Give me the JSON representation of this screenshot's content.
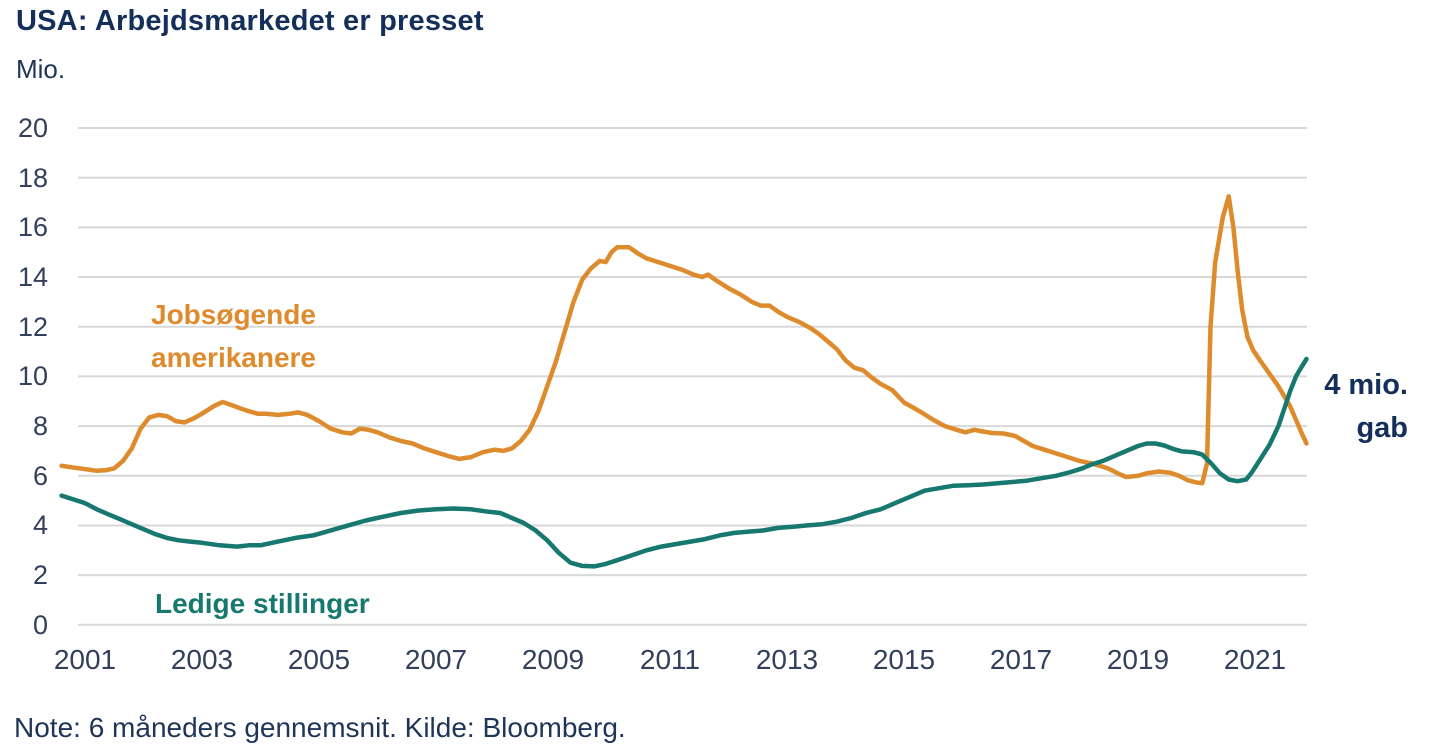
{
  "header": {
    "title": "USA: Arbejdsmarkedet er presset",
    "unit": "Mio."
  },
  "legend": {
    "jobseekers": {
      "line1": "Jobsøgende",
      "line2": "amerikanere"
    },
    "vacancies": {
      "label": "Ledige stillinger"
    }
  },
  "annotation": {
    "line1": "4 mio.",
    "line2": "gab"
  },
  "footer": {
    "note": "Note: 6 måneders gennemsnit. Kilde: Bloomberg."
  },
  "colors": {
    "jobseekers": "#dd8b2d",
    "vacancies": "#17786f",
    "grid": "#d8d8d8",
    "title": "#14305a",
    "tick": "#33405c"
  },
  "chart_data": {
    "type": "line",
    "title": "USA: Arbejdsmarkedet er presset",
    "ylabel": "Mio.",
    "ylim": [
      0,
      20
    ],
    "grid": "horizontal",
    "legend_position": "inline-labels",
    "y_ticks": [
      0,
      2,
      4,
      6,
      8,
      10,
      12,
      14,
      16,
      18,
      20
    ],
    "x_ticks": [
      2001,
      2003,
      2005,
      2007,
      2009,
      2011,
      2013,
      2015,
      2017,
      2019,
      2021
    ],
    "annotation_text": "4 mio. gab",
    "note": "Note: 6 måneders gennemsnit. Kilde: Bloomberg.",
    "series": [
      {
        "name": "Jobsøgende amerikanere",
        "color": "#dd8b2d",
        "points": [
          [
            2000.6,
            6.4
          ],
          [
            2000.75,
            6.35
          ],
          [
            2000.9,
            6.3
          ],
          [
            2001.05,
            6.25
          ],
          [
            2001.2,
            6.2
          ],
          [
            2001.35,
            6.22
          ],
          [
            2001.5,
            6.3
          ],
          [
            2001.65,
            6.6
          ],
          [
            2001.8,
            7.1
          ],
          [
            2001.95,
            7.9
          ],
          [
            2002.1,
            8.35
          ],
          [
            2002.25,
            8.45
          ],
          [
            2002.4,
            8.4
          ],
          [
            2002.55,
            8.2
          ],
          [
            2002.7,
            8.15
          ],
          [
            2002.85,
            8.3
          ],
          [
            2003.0,
            8.5
          ],
          [
            2003.2,
            8.8
          ],
          [
            2003.35,
            8.97
          ],
          [
            2003.5,
            8.85
          ],
          [
            2003.65,
            8.72
          ],
          [
            2003.8,
            8.6
          ],
          [
            2003.95,
            8.5
          ],
          [
            2004.1,
            8.5
          ],
          [
            2004.3,
            8.45
          ],
          [
            2004.5,
            8.5
          ],
          [
            2004.65,
            8.55
          ],
          [
            2004.8,
            8.45
          ],
          [
            2005.0,
            8.2
          ],
          [
            2005.2,
            7.9
          ],
          [
            2005.4,
            7.75
          ],
          [
            2005.55,
            7.7
          ],
          [
            2005.7,
            7.9
          ],
          [
            2005.85,
            7.85
          ],
          [
            2006.0,
            7.75
          ],
          [
            2006.2,
            7.55
          ],
          [
            2006.4,
            7.4
          ],
          [
            2006.6,
            7.3
          ],
          [
            2006.8,
            7.1
          ],
          [
            2007.0,
            6.95
          ],
          [
            2007.2,
            6.8
          ],
          [
            2007.4,
            6.68
          ],
          [
            2007.6,
            6.75
          ],
          [
            2007.8,
            6.95
          ],
          [
            2008.0,
            7.05
          ],
          [
            2008.15,
            7.0
          ],
          [
            2008.3,
            7.1
          ],
          [
            2008.45,
            7.4
          ],
          [
            2008.6,
            7.85
          ],
          [
            2008.75,
            8.6
          ],
          [
            2008.9,
            9.6
          ],
          [
            2009.05,
            10.6
          ],
          [
            2009.2,
            11.8
          ],
          [
            2009.35,
            13.0
          ],
          [
            2009.5,
            13.9
          ],
          [
            2009.65,
            14.35
          ],
          [
            2009.8,
            14.65
          ],
          [
            2009.9,
            14.6
          ],
          [
            2010.0,
            15.0
          ],
          [
            2010.1,
            15.2
          ],
          [
            2010.3,
            15.2
          ],
          [
            2010.45,
            14.95
          ],
          [
            2010.6,
            14.75
          ],
          [
            2010.8,
            14.6
          ],
          [
            2011.0,
            14.45
          ],
          [
            2011.2,
            14.3
          ],
          [
            2011.4,
            14.1
          ],
          [
            2011.55,
            14.0
          ],
          [
            2011.65,
            14.1
          ],
          [
            2011.8,
            13.85
          ],
          [
            2012.0,
            13.55
          ],
          [
            2012.2,
            13.3
          ],
          [
            2012.4,
            13.0
          ],
          [
            2012.55,
            12.85
          ],
          [
            2012.7,
            12.85
          ],
          [
            2012.85,
            12.6
          ],
          [
            2013.0,
            12.4
          ],
          [
            2013.2,
            12.2
          ],
          [
            2013.4,
            11.95
          ],
          [
            2013.55,
            11.7
          ],
          [
            2013.7,
            11.4
          ],
          [
            2013.85,
            11.1
          ],
          [
            2014.0,
            10.65
          ],
          [
            2014.15,
            10.35
          ],
          [
            2014.3,
            10.25
          ],
          [
            2014.45,
            9.95
          ],
          [
            2014.6,
            9.7
          ],
          [
            2014.8,
            9.45
          ],
          [
            2015.0,
            8.95
          ],
          [
            2015.15,
            8.75
          ],
          [
            2015.3,
            8.55
          ],
          [
            2015.5,
            8.25
          ],
          [
            2015.7,
            8.0
          ],
          [
            2015.9,
            7.85
          ],
          [
            2016.05,
            7.75
          ],
          [
            2016.2,
            7.85
          ],
          [
            2016.35,
            7.78
          ],
          [
            2016.5,
            7.72
          ],
          [
            2016.7,
            7.7
          ],
          [
            2016.9,
            7.6
          ],
          [
            2017.05,
            7.4
          ],
          [
            2017.2,
            7.2
          ],
          [
            2017.4,
            7.05
          ],
          [
            2017.6,
            6.9
          ],
          [
            2017.8,
            6.75
          ],
          [
            2018.0,
            6.6
          ],
          [
            2018.2,
            6.5
          ],
          [
            2018.35,
            6.4
          ],
          [
            2018.5,
            6.28
          ],
          [
            2018.65,
            6.1
          ],
          [
            2018.8,
            5.95
          ],
          [
            2019.0,
            6.0
          ],
          [
            2019.15,
            6.1
          ],
          [
            2019.35,
            6.17
          ],
          [
            2019.55,
            6.12
          ],
          [
            2019.7,
            6.0
          ],
          [
            2019.85,
            5.82
          ],
          [
            2020.0,
            5.73
          ],
          [
            2020.1,
            5.7
          ],
          [
            2020.18,
            6.5
          ],
          [
            2020.24,
            12.0
          ],
          [
            2020.32,
            14.6
          ],
          [
            2020.45,
            16.4
          ],
          [
            2020.55,
            17.25
          ],
          [
            2020.63,
            16.0
          ],
          [
            2020.7,
            14.3
          ],
          [
            2020.78,
            12.7
          ],
          [
            2020.87,
            11.6
          ],
          [
            2020.97,
            11.05
          ],
          [
            2021.1,
            10.6
          ],
          [
            2021.25,
            10.1
          ],
          [
            2021.4,
            9.6
          ],
          [
            2021.5,
            9.2
          ],
          [
            2021.6,
            8.8
          ],
          [
            2021.7,
            8.25
          ],
          [
            2021.8,
            7.7
          ],
          [
            2021.88,
            7.3
          ]
        ]
      },
      {
        "name": "Ledige stillinger",
        "color": "#17786f",
        "points": [
          [
            2000.6,
            5.2
          ],
          [
            2000.8,
            5.05
          ],
          [
            2001.0,
            4.9
          ],
          [
            2001.2,
            4.65
          ],
          [
            2001.4,
            4.45
          ],
          [
            2001.6,
            4.25
          ],
          [
            2001.8,
            4.05
          ],
          [
            2002.0,
            3.85
          ],
          [
            2002.2,
            3.65
          ],
          [
            2002.4,
            3.5
          ],
          [
            2002.6,
            3.4
          ],
          [
            2002.8,
            3.35
          ],
          [
            2003.0,
            3.3
          ],
          [
            2003.3,
            3.2
          ],
          [
            2003.6,
            3.15
          ],
          [
            2003.8,
            3.2
          ],
          [
            2004.0,
            3.2
          ],
          [
            2004.3,
            3.35
          ],
          [
            2004.6,
            3.5
          ],
          [
            2004.9,
            3.6
          ],
          [
            2005.2,
            3.8
          ],
          [
            2005.5,
            4.0
          ],
          [
            2005.8,
            4.2
          ],
          [
            2006.1,
            4.35
          ],
          [
            2006.4,
            4.5
          ],
          [
            2006.7,
            4.6
          ],
          [
            2007.0,
            4.65
          ],
          [
            2007.3,
            4.68
          ],
          [
            2007.6,
            4.65
          ],
          [
            2007.9,
            4.55
          ],
          [
            2008.1,
            4.5
          ],
          [
            2008.3,
            4.3
          ],
          [
            2008.5,
            4.1
          ],
          [
            2008.7,
            3.8
          ],
          [
            2008.9,
            3.4
          ],
          [
            2009.1,
            2.9
          ],
          [
            2009.3,
            2.5
          ],
          [
            2009.5,
            2.37
          ],
          [
            2009.7,
            2.35
          ],
          [
            2009.9,
            2.45
          ],
          [
            2010.1,
            2.6
          ],
          [
            2010.35,
            2.8
          ],
          [
            2010.6,
            3.0
          ],
          [
            2010.85,
            3.15
          ],
          [
            2011.1,
            3.25
          ],
          [
            2011.35,
            3.35
          ],
          [
            2011.6,
            3.45
          ],
          [
            2011.85,
            3.6
          ],
          [
            2012.1,
            3.7
          ],
          [
            2012.35,
            3.75
          ],
          [
            2012.6,
            3.8
          ],
          [
            2012.85,
            3.9
          ],
          [
            2013.1,
            3.95
          ],
          [
            2013.35,
            4.0
          ],
          [
            2013.6,
            4.05
          ],
          [
            2013.85,
            4.15
          ],
          [
            2014.1,
            4.3
          ],
          [
            2014.35,
            4.5
          ],
          [
            2014.6,
            4.65
          ],
          [
            2014.85,
            4.9
          ],
          [
            2015.1,
            5.15
          ],
          [
            2015.35,
            5.4
          ],
          [
            2015.6,
            5.5
          ],
          [
            2015.85,
            5.6
          ],
          [
            2016.1,
            5.62
          ],
          [
            2016.35,
            5.65
          ],
          [
            2016.6,
            5.7
          ],
          [
            2016.85,
            5.75
          ],
          [
            2017.1,
            5.8
          ],
          [
            2017.35,
            5.9
          ],
          [
            2017.6,
            6.0
          ],
          [
            2017.85,
            6.15
          ],
          [
            2018.05,
            6.3
          ],
          [
            2018.2,
            6.45
          ],
          [
            2018.4,
            6.6
          ],
          [
            2018.6,
            6.8
          ],
          [
            2018.8,
            7.0
          ],
          [
            2019.0,
            7.2
          ],
          [
            2019.15,
            7.3
          ],
          [
            2019.3,
            7.3
          ],
          [
            2019.45,
            7.22
          ],
          [
            2019.6,
            7.08
          ],
          [
            2019.75,
            6.98
          ],
          [
            2019.95,
            6.95
          ],
          [
            2020.1,
            6.85
          ],
          [
            2020.25,
            6.5
          ],
          [
            2020.4,
            6.1
          ],
          [
            2020.55,
            5.85
          ],
          [
            2020.7,
            5.78
          ],
          [
            2020.85,
            5.85
          ],
          [
            2020.95,
            6.15
          ],
          [
            2021.1,
            6.7
          ],
          [
            2021.25,
            7.25
          ],
          [
            2021.4,
            8.0
          ],
          [
            2021.5,
            8.7
          ],
          [
            2021.6,
            9.4
          ],
          [
            2021.7,
            10.0
          ],
          [
            2021.8,
            10.4
          ],
          [
            2021.88,
            10.7
          ]
        ]
      }
    ]
  }
}
